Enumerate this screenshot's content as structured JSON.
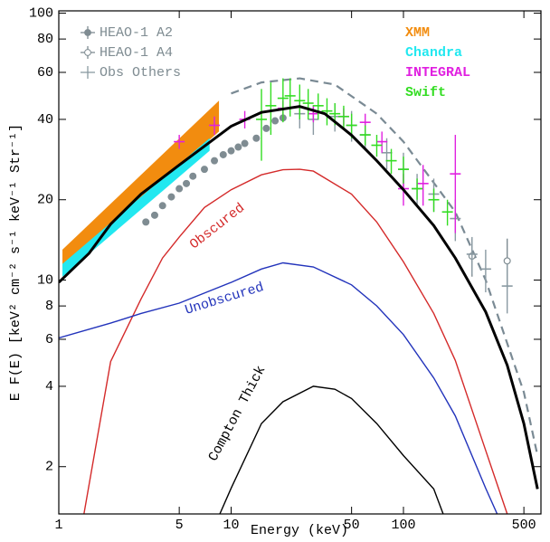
{
  "chart_data": {
    "type": "line",
    "x_label": "Energy (keV)",
    "y_label": "E F(E) [keV² cm⁻² s⁻¹ keV⁻¹ Str⁻¹]",
    "log_x": true,
    "log_y": true,
    "xlim": [
      1,
      628
    ],
    "ylim": [
      1.33,
      102
    ],
    "xticks": [
      1,
      5,
      10,
      50,
      100,
      500
    ],
    "yticks": [
      2,
      4,
      6,
      8,
      10,
      20,
      40,
      60,
      80,
      100
    ],
    "series": [
      {
        "name": "XMM",
        "legend": "right",
        "style": "band",
        "color": "#f28c0f",
        "x": [
          1.05,
          8.5
        ],
        "lower": [
          11,
          36
        ],
        "upper": [
          13,
          47
        ]
      },
      {
        "name": "Chandra",
        "legend": "right",
        "style": "band",
        "color": "#22e8f0",
        "x": [
          1.05,
          7.5
        ],
        "lower": [
          10.3,
          30.5
        ],
        "upper": [
          11.5,
          34
        ]
      },
      {
        "name": "Obscured",
        "legend": "curve",
        "style": "line",
        "color": "#d42a2a",
        "x": [
          1.4,
          2,
          3,
          4,
          5,
          7,
          10,
          15,
          20,
          25,
          30,
          50,
          70,
          100,
          150,
          200,
          300,
          400
        ],
        "values": [
          1.33,
          4.95,
          8.5,
          12.1,
          14.5,
          18.7,
          21.8,
          24.8,
          25.9,
          26,
          25.6,
          21,
          16.5,
          11.7,
          7.5,
          5,
          2.3,
          1.33
        ]
      },
      {
        "name": "Unobscured",
        "legend": "curve",
        "style": "line",
        "color": "#2233bb",
        "x": [
          1,
          2,
          3,
          5,
          10,
          15,
          20,
          30,
          50,
          70,
          100,
          150,
          200,
          300,
          350
        ],
        "values": [
          6.07,
          6.9,
          7.5,
          8.2,
          9.8,
          11,
          11.6,
          11.2,
          9.6,
          8,
          6.25,
          4.3,
          3.1,
          1.66,
          1.33
        ]
      },
      {
        "name": "Compton Thick",
        "legend": "curve",
        "style": "line",
        "color": "#000000",
        "x": [
          8.6,
          10,
          15,
          20,
          30,
          40,
          50,
          70,
          100,
          150,
          170
        ],
        "values": [
          1.33,
          1.66,
          2.9,
          3.5,
          4,
          3.9,
          3.6,
          2.9,
          2.2,
          1.65,
          1.33
        ]
      },
      {
        "style": "dashed",
        "color": "#7a8a94",
        "x": [
          10,
          15,
          25,
          40,
          70,
          100,
          200,
          300,
          500,
          600
        ],
        "values": [
          50,
          55,
          57,
          54,
          42,
          33,
          18,
          10,
          3.8,
          2.2
        ]
      },
      {
        "name": "HEAO-1 A2",
        "legend": "left",
        "style": "points",
        "marker": "filled",
        "color": "#7f8c92",
        "x": [
          3.2,
          3.6,
          4,
          4.5,
          5,
          5.5,
          6,
          7,
          8,
          9,
          10,
          11,
          12,
          14,
          16,
          18,
          20
        ],
        "values": [
          16.5,
          17.5,
          19,
          20.5,
          22,
          23,
          24.5,
          26,
          28,
          29.5,
          30.5,
          31.5,
          32.5,
          34,
          37,
          39.5,
          40.5
        ]
      },
      {
        "name": "HEAO-1 A4",
        "legend": "left",
        "style": "points",
        "marker": "open",
        "color": "#7f8c92",
        "x": [
          250,
          400
        ],
        "values": [
          12.3,
          11.8
        ],
        "errors": [
          2,
          2.5
        ]
      },
      {
        "name": "Obs Others",
        "legend": "left",
        "style": "points",
        "marker": "cross",
        "color": "#8a9aa2",
        "x": [
          25,
          30,
          40,
          50,
          60,
          80,
          100,
          120,
          150,
          200,
          250,
          300,
          400
        ],
        "values": [
          42,
          40,
          41,
          38,
          35,
          30,
          26,
          22,
          21,
          17,
          12.5,
          11,
          9.5
        ],
        "errors": [
          5,
          5,
          5,
          5,
          4,
          4,
          4,
          3,
          3,
          3,
          2,
          2,
          2
        ]
      },
      {
        "name": "INTEGRAL",
        "legend": "right",
        "style": "points",
        "marker": "cross",
        "color": "#e020e0",
        "x": [
          5,
          8,
          12,
          20,
          30,
          45,
          60,
          75,
          100,
          130,
          200
        ],
        "values": [
          33,
          38,
          40,
          44,
          42,
          41,
          39,
          33,
          22,
          23,
          25
        ],
        "errors": [
          2,
          3,
          3,
          3,
          3,
          3,
          3,
          3,
          3,
          4,
          10
        ]
      },
      {
        "name": "Swift",
        "legend": "right",
        "style": "points",
        "marker": "cross",
        "color": "#33dd22",
        "x": [
          15,
          17,
          20,
          22,
          25,
          28,
          32,
          36,
          40,
          45,
          50,
          60,
          70,
          85,
          100,
          120,
          150,
          180
        ],
        "values": [
          40,
          45,
          48,
          49,
          47,
          46,
          45,
          43,
          42,
          41,
          38,
          35,
          32,
          28,
          26,
          22,
          20,
          18
        ],
        "errors": [
          12,
          10,
          9,
          8,
          7,
          6,
          5,
          5,
          4,
          4,
          4,
          3,
          3,
          3,
          3,
          2,
          2,
          2
        ]
      },
      {
        "style": "line",
        "thick": true,
        "color": "#000000",
        "x": [
          1,
          1.5,
          2,
          3,
          5,
          10,
          15,
          25,
          35,
          50,
          70,
          100,
          150,
          200,
          300,
          400,
          500,
          600
        ],
        "values": [
          9.8,
          12.6,
          16.2,
          21,
          27,
          37.7,
          42.5,
          44.7,
          42,
          34.9,
          28,
          21.8,
          16,
          12.1,
          7.6,
          4.8,
          2.9,
          1.65
        ]
      }
    ]
  }
}
